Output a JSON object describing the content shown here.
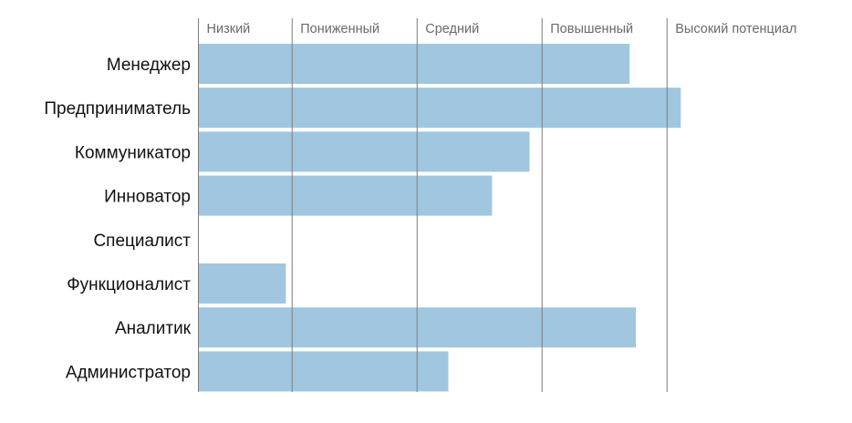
{
  "chart_data": {
    "type": "bar",
    "orientation": "horizontal",
    "levels": [
      "Низкий",
      "Пониженный",
      "Средний",
      "Повышенный",
      "Высокий потенциал"
    ],
    "level_boundaries": [
      0,
      0.75,
      1.75,
      2.75,
      3.75
    ],
    "categories": [
      "Менеджер",
      "Предприниматель",
      "Коммуникатор",
      "Инноватор",
      "Специалист",
      "Функционалист",
      "Аналитик",
      "Администратор"
    ],
    "values": [
      3.45,
      3.86,
      2.65,
      2.35,
      0,
      0.7,
      3.5,
      2.0
    ],
    "xlim": [
      0,
      5
    ],
    "legend": "none",
    "grid": "vertical lines at level boundaries"
  },
  "colors": {
    "bar": "#a0c7df",
    "gridline": "#7d7d7d",
    "category_text": "#111111",
    "level_text": "#6a6a6a"
  }
}
